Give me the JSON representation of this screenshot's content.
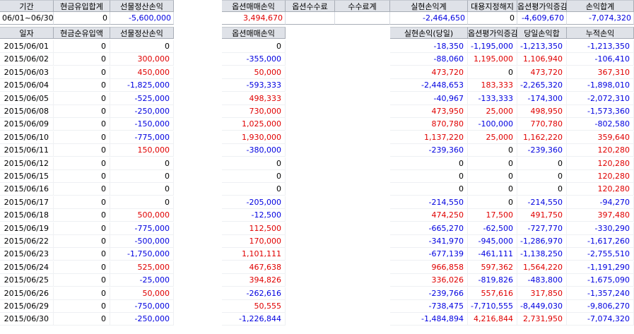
{
  "summary_headers": [
    "기간",
    "현금유입합계",
    "선물정산손익",
    "옵션매매손익",
    "옵션수수료",
    "수수료계",
    "실현손익계",
    "대용지정해지",
    "옵션평가익증감",
    "손익합계"
  ],
  "summary_values": {
    "period": "06/01~06/30",
    "cash_in_total": "0",
    "futures_settle": "-5,600,000",
    "option_trade": "3,494,670",
    "option_fee": "",
    "fee_total": "",
    "realized_total": "-2,464,650",
    "substitute_release": "0",
    "option_eval_change": "-4,609,670",
    "pnl_total": "-7,074,320"
  },
  "detail_headers": [
    "일자",
    "현금순유입액",
    "선물정산손익",
    "옵션매매손익",
    "실현손익(당일)",
    "옵션평가익증감",
    "당일손익합",
    "누적손익"
  ],
  "rows": [
    [
      "2015/06/01",
      "0",
      "0",
      "0",
      "-18,350",
      "-1,195,000",
      "-1,213,350",
      "-1,213,350"
    ],
    [
      "2015/06/02",
      "0",
      "300,000",
      "-355,000",
      "-88,060",
      "1,195,000",
      "1,106,940",
      "-106,410"
    ],
    [
      "2015/06/03",
      "0",
      "450,000",
      "50,000",
      "473,720",
      "0",
      "473,720",
      "367,310"
    ],
    [
      "2015/06/04",
      "0",
      "-1,825,000",
      "-593,333",
      "-2,448,653",
      "183,333",
      "-2,265,320",
      "-1,898,010"
    ],
    [
      "2015/06/05",
      "0",
      "-525,000",
      "498,333",
      "-40,967",
      "-133,333",
      "-174,300",
      "-2,072,310"
    ],
    [
      "2015/06/08",
      "0",
      "-250,000",
      "730,000",
      "473,950",
      "25,000",
      "498,950",
      "-1,573,360"
    ],
    [
      "2015/06/09",
      "0",
      "-150,000",
      "1,025,000",
      "870,780",
      "-100,000",
      "770,780",
      "-802,580"
    ],
    [
      "2015/06/10",
      "0",
      "-775,000",
      "1,930,000",
      "1,137,220",
      "25,000",
      "1,162,220",
      "359,640"
    ],
    [
      "2015/06/11",
      "0",
      "150,000",
      "-380,000",
      "-239,360",
      "0",
      "-239,360",
      "120,280"
    ],
    [
      "2015/06/12",
      "0",
      "0",
      "0",
      "0",
      "0",
      "0",
      "120,280"
    ],
    [
      "2015/06/15",
      "0",
      "0",
      "0",
      "0",
      "0",
      "0",
      "120,280"
    ],
    [
      "2015/06/16",
      "0",
      "0",
      "0",
      "0",
      "0",
      "0",
      "120,280"
    ],
    [
      "2015/06/17",
      "0",
      "0",
      "-205,000",
      "-214,550",
      "0",
      "-214,550",
      "-94,270"
    ],
    [
      "2015/06/18",
      "0",
      "500,000",
      "-12,500",
      "474,250",
      "17,500",
      "491,750",
      "397,480"
    ],
    [
      "2015/06/19",
      "0",
      "-775,000",
      "112,500",
      "-665,270",
      "-62,500",
      "-727,770",
      "-330,290"
    ],
    [
      "2015/06/22",
      "0",
      "-500,000",
      "170,000",
      "-341,970",
      "-945,000",
      "-1,286,970",
      "-1,617,260"
    ],
    [
      "2015/06/23",
      "0",
      "-1,750,000",
      "1,101,111",
      "-677,139",
      "-461,111",
      "-1,138,250",
      "-2,755,510"
    ],
    [
      "2015/06/24",
      "0",
      "525,000",
      "467,638",
      "966,858",
      "597,362",
      "1,564,220",
      "-1,191,290"
    ],
    [
      "2015/06/25",
      "0",
      "-25,000",
      "394,826",
      "336,026",
      "-819,826",
      "-483,800",
      "-1,675,090"
    ],
    [
      "2015/06/26",
      "0",
      "50,000",
      "-262,616",
      "-239,766",
      "557,616",
      "317,850",
      "-1,357,240"
    ],
    [
      "2015/06/29",
      "0",
      "-750,000",
      "50,555",
      "-738,475",
      "-7,710,555",
      "-8,449,030",
      "-9,806,270"
    ],
    [
      "2015/06/30",
      "0",
      "-250,000",
      "-1,226,844",
      "-1,484,894",
      "4,216,844",
      "2,731,950",
      "-7,074,320"
    ]
  ]
}
